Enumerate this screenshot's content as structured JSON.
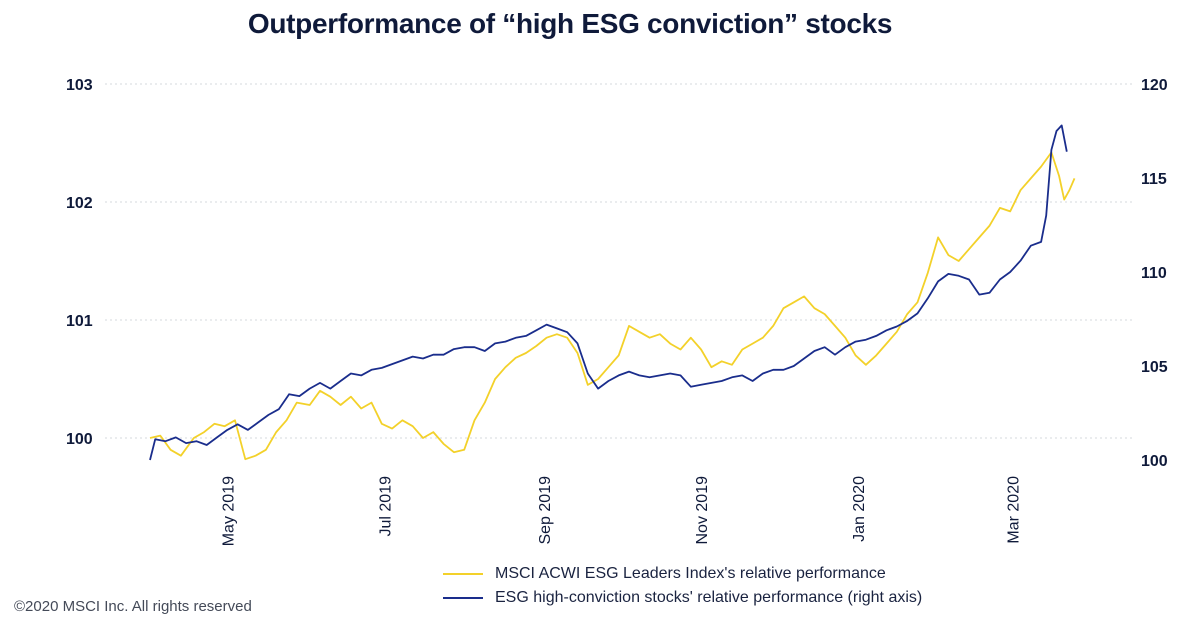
{
  "chart_data": {
    "type": "line",
    "title": "Outperformance of “high ESG conviction” stocks",
    "y_left": {
      "ylim": [
        100,
        103
      ],
      "ticks": [
        "100",
        "101",
        "102",
        "103"
      ]
    },
    "y_right": {
      "ylim": [
        100,
        120
      ],
      "ticks": [
        "100",
        "105",
        "110",
        "115",
        "120"
      ]
    },
    "x_labels": [
      "May 2019",
      "Jul 2019",
      "Sep 2019",
      "Nov 2019",
      "Jan 2020",
      "Mar 2020"
    ],
    "x_start": "2019-04-01",
    "x_end": "2020-03-31",
    "grid": true,
    "legend_position": "bottom",
    "series": [
      {
        "name": "MSCI ACWI ESG Leaders Index's relative performance",
        "axis": "left",
        "color": "#f3d12a",
        "points": [
          [
            "2019-04-01",
            100.0
          ],
          [
            "2019-04-05",
            100.02
          ],
          [
            "2019-04-09",
            99.9
          ],
          [
            "2019-04-13",
            99.85
          ],
          [
            "2019-04-18",
            100.0
          ],
          [
            "2019-04-22",
            100.05
          ],
          [
            "2019-04-26",
            100.12
          ],
          [
            "2019-04-30",
            100.1
          ],
          [
            "2019-05-04",
            100.15
          ],
          [
            "2019-05-08",
            99.82
          ],
          [
            "2019-05-12",
            99.85
          ],
          [
            "2019-05-16",
            99.9
          ],
          [
            "2019-05-20",
            100.05
          ],
          [
            "2019-05-24",
            100.15
          ],
          [
            "2019-05-28",
            100.3
          ],
          [
            "2019-06-02",
            100.28
          ],
          [
            "2019-06-06",
            100.4
          ],
          [
            "2019-06-10",
            100.35
          ],
          [
            "2019-06-14",
            100.28
          ],
          [
            "2019-06-18",
            100.35
          ],
          [
            "2019-06-22",
            100.25
          ],
          [
            "2019-06-26",
            100.3
          ],
          [
            "2019-06-30",
            100.12
          ],
          [
            "2019-07-04",
            100.08
          ],
          [
            "2019-07-08",
            100.15
          ],
          [
            "2019-07-12",
            100.1
          ],
          [
            "2019-07-16",
            100.0
          ],
          [
            "2019-07-20",
            100.05
          ],
          [
            "2019-07-24",
            99.95
          ],
          [
            "2019-07-28",
            99.88
          ],
          [
            "2019-08-01",
            99.9
          ],
          [
            "2019-08-05",
            100.15
          ],
          [
            "2019-08-09",
            100.3
          ],
          [
            "2019-08-13",
            100.5
          ],
          [
            "2019-08-17",
            100.6
          ],
          [
            "2019-08-21",
            100.68
          ],
          [
            "2019-08-25",
            100.72
          ],
          [
            "2019-08-29",
            100.78
          ],
          [
            "2019-09-02",
            100.85
          ],
          [
            "2019-09-06",
            100.88
          ],
          [
            "2019-09-10",
            100.85
          ],
          [
            "2019-09-14",
            100.72
          ],
          [
            "2019-09-18",
            100.45
          ],
          [
            "2019-09-22",
            100.5
          ],
          [
            "2019-09-26",
            100.6
          ],
          [
            "2019-09-30",
            100.7
          ],
          [
            "2019-10-04",
            100.95
          ],
          [
            "2019-10-08",
            100.9
          ],
          [
            "2019-10-12",
            100.85
          ],
          [
            "2019-10-16",
            100.88
          ],
          [
            "2019-10-20",
            100.8
          ],
          [
            "2019-10-24",
            100.75
          ],
          [
            "2019-10-28",
            100.85
          ],
          [
            "2019-11-01",
            100.75
          ],
          [
            "2019-11-05",
            100.6
          ],
          [
            "2019-11-09",
            100.65
          ],
          [
            "2019-11-13",
            100.62
          ],
          [
            "2019-11-17",
            100.75
          ],
          [
            "2019-11-21",
            100.8
          ],
          [
            "2019-11-25",
            100.85
          ],
          [
            "2019-11-29",
            100.95
          ],
          [
            "2019-12-03",
            101.1
          ],
          [
            "2019-12-07",
            101.15
          ],
          [
            "2019-12-11",
            101.2
          ],
          [
            "2019-12-15",
            101.1
          ],
          [
            "2019-12-19",
            101.05
          ],
          [
            "2019-12-23",
            100.95
          ],
          [
            "2019-12-27",
            100.85
          ],
          [
            "2019-12-31",
            100.7
          ],
          [
            "2020-01-04",
            100.62
          ],
          [
            "2020-01-08",
            100.7
          ],
          [
            "2020-01-12",
            100.8
          ],
          [
            "2020-01-16",
            100.9
          ],
          [
            "2020-01-20",
            101.05
          ],
          [
            "2020-01-24",
            101.15
          ],
          [
            "2020-01-28",
            101.4
          ],
          [
            "2020-02-01",
            101.7
          ],
          [
            "2020-02-05",
            101.55
          ],
          [
            "2020-02-09",
            101.5
          ],
          [
            "2020-02-13",
            101.6
          ],
          [
            "2020-02-17",
            101.7
          ],
          [
            "2020-02-21",
            101.8
          ],
          [
            "2020-02-25",
            101.95
          ],
          [
            "2020-02-29",
            101.92
          ],
          [
            "2020-03-04",
            102.1
          ],
          [
            "2020-03-08",
            102.2
          ],
          [
            "2020-03-12",
            102.3
          ],
          [
            "2020-03-16",
            102.42
          ],
          [
            "2020-03-19",
            102.22
          ],
          [
            "2020-03-21",
            102.02
          ],
          [
            "2020-03-23",
            102.1
          ],
          [
            "2020-03-25",
            102.2
          ]
        ]
      },
      {
        "name": "ESG high-conviction stocks' relative performance (right axis)",
        "axis": "right",
        "color": "#1a2d8c",
        "points": [
          [
            "2019-04-01",
            100.0
          ],
          [
            "2019-04-03",
            101.1
          ],
          [
            "2019-04-07",
            101.0
          ],
          [
            "2019-04-11",
            101.2
          ],
          [
            "2019-04-15",
            100.9
          ],
          [
            "2019-04-19",
            101.0
          ],
          [
            "2019-04-23",
            100.8
          ],
          [
            "2019-04-27",
            101.2
          ],
          [
            "2019-05-01",
            101.6
          ],
          [
            "2019-05-05",
            101.9
          ],
          [
            "2019-05-09",
            101.6
          ],
          [
            "2019-05-13",
            102.0
          ],
          [
            "2019-05-17",
            102.4
          ],
          [
            "2019-05-21",
            102.7
          ],
          [
            "2019-05-25",
            103.5
          ],
          [
            "2019-05-29",
            103.4
          ],
          [
            "2019-06-02",
            103.8
          ],
          [
            "2019-06-06",
            104.1
          ],
          [
            "2019-06-10",
            103.8
          ],
          [
            "2019-06-14",
            104.2
          ],
          [
            "2019-06-18",
            104.6
          ],
          [
            "2019-06-22",
            104.5
          ],
          [
            "2019-06-26",
            104.8
          ],
          [
            "2019-06-30",
            104.9
          ],
          [
            "2019-07-04",
            105.1
          ],
          [
            "2019-07-08",
            105.3
          ],
          [
            "2019-07-12",
            105.5
          ],
          [
            "2019-07-16",
            105.4
          ],
          [
            "2019-07-20",
            105.6
          ],
          [
            "2019-07-24",
            105.6
          ],
          [
            "2019-07-28",
            105.9
          ],
          [
            "2019-08-01",
            106.0
          ],
          [
            "2019-08-05",
            106.0
          ],
          [
            "2019-08-09",
            105.8
          ],
          [
            "2019-08-13",
            106.2
          ],
          [
            "2019-08-17",
            106.3
          ],
          [
            "2019-08-21",
            106.5
          ],
          [
            "2019-08-25",
            106.6
          ],
          [
            "2019-08-29",
            106.9
          ],
          [
            "2019-09-02",
            107.2
          ],
          [
            "2019-09-06",
            107.0
          ],
          [
            "2019-09-10",
            106.8
          ],
          [
            "2019-09-14",
            106.2
          ],
          [
            "2019-09-18",
            104.6
          ],
          [
            "2019-09-22",
            103.8
          ],
          [
            "2019-09-26",
            104.2
          ],
          [
            "2019-09-30",
            104.5
          ],
          [
            "2019-10-04",
            104.7
          ],
          [
            "2019-10-08",
            104.5
          ],
          [
            "2019-10-12",
            104.4
          ],
          [
            "2019-10-16",
            104.5
          ],
          [
            "2019-10-20",
            104.6
          ],
          [
            "2019-10-24",
            104.5
          ],
          [
            "2019-10-28",
            103.9
          ],
          [
            "2019-11-01",
            104.0
          ],
          [
            "2019-11-05",
            104.1
          ],
          [
            "2019-11-09",
            104.2
          ],
          [
            "2019-11-13",
            104.4
          ],
          [
            "2019-11-17",
            104.5
          ],
          [
            "2019-11-21",
            104.2
          ],
          [
            "2019-11-25",
            104.6
          ],
          [
            "2019-11-29",
            104.8
          ],
          [
            "2019-12-03",
            104.8
          ],
          [
            "2019-12-07",
            105.0
          ],
          [
            "2019-12-11",
            105.4
          ],
          [
            "2019-12-15",
            105.8
          ],
          [
            "2019-12-19",
            106.0
          ],
          [
            "2019-12-23",
            105.6
          ],
          [
            "2019-12-27",
            106.0
          ],
          [
            "2019-12-31",
            106.3
          ],
          [
            "2020-01-04",
            106.4
          ],
          [
            "2020-01-08",
            106.6
          ],
          [
            "2020-01-12",
            106.9
          ],
          [
            "2020-01-16",
            107.1
          ],
          [
            "2020-01-20",
            107.4
          ],
          [
            "2020-01-24",
            107.8
          ],
          [
            "2020-01-28",
            108.6
          ],
          [
            "2020-02-01",
            109.5
          ],
          [
            "2020-02-05",
            109.9
          ],
          [
            "2020-02-09",
            109.8
          ],
          [
            "2020-02-13",
            109.6
          ],
          [
            "2020-02-17",
            108.8
          ],
          [
            "2020-02-21",
            108.9
          ],
          [
            "2020-02-25",
            109.6
          ],
          [
            "2020-02-29",
            110.0
          ],
          [
            "2020-03-04",
            110.6
          ],
          [
            "2020-03-08",
            111.4
          ],
          [
            "2020-03-12",
            111.6
          ],
          [
            "2020-03-14",
            113.0
          ],
          [
            "2020-03-16",
            116.5
          ],
          [
            "2020-03-18",
            117.5
          ],
          [
            "2020-03-20",
            117.8
          ],
          [
            "2020-03-22",
            116.4
          ]
        ]
      }
    ]
  },
  "copyright": "©2020 MSCI Inc. All rights reserved"
}
